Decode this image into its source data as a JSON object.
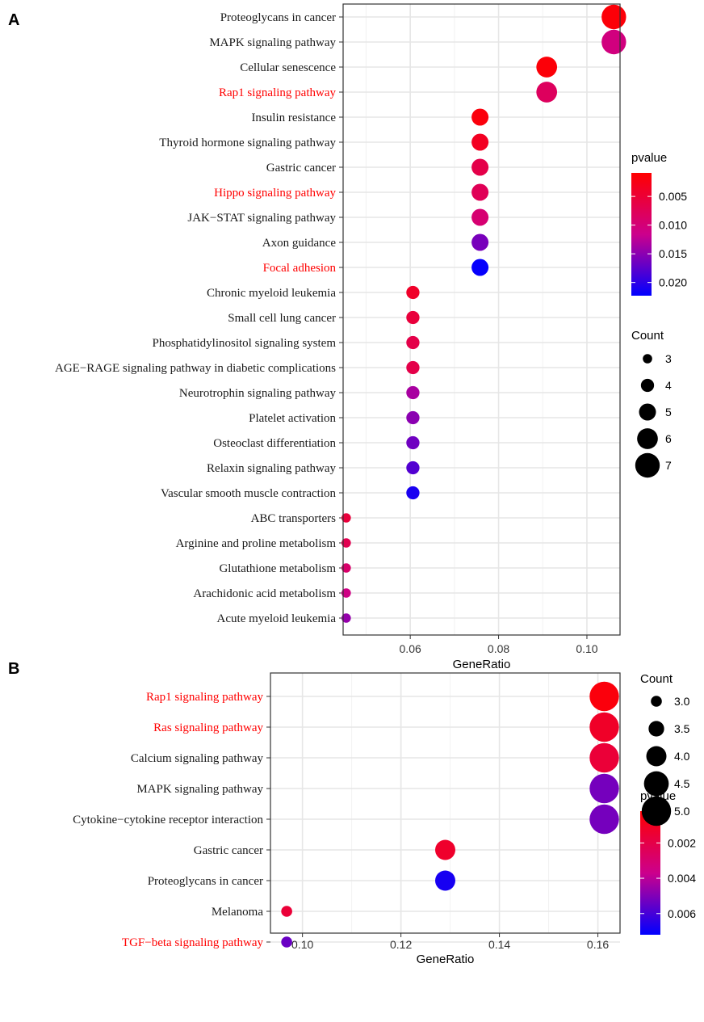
{
  "chart_data": [
    {
      "panel": "A",
      "type": "scatter",
      "xlabel": "GeneRatio",
      "ylabel": "",
      "xlim": [
        0.0448,
        0.1075
      ],
      "xticks": [
        0.06,
        0.08,
        0.1
      ],
      "xtick_labels": [
        "0.06",
        "0.08",
        "0.10"
      ],
      "categories": [
        "Proteoglycans in cancer",
        "MAPK signaling pathway",
        "Cellular senescence",
        "Rap1 signaling pathway",
        "Insulin resistance",
        "Thyroid hormone signaling pathway",
        "Gastric cancer",
        "Hippo signaling pathway",
        "JAK−STAT signaling pathway",
        "Axon guidance",
        "Focal adhesion",
        "Chronic myeloid leukemia",
        "Small cell lung cancer",
        "Phosphatidylinositol signaling system",
        "AGE−RAGE signaling pathway in diabetic complications",
        "Neurotrophin signaling pathway",
        "Platelet activation",
        "Osteoclast differentiation",
        "Relaxin signaling pathway",
        "Vascular smooth muscle contraction",
        "ABC transporters",
        "Arginine and proline metabolism",
        "Glutathione metabolism",
        "Arachidonic acid metabolism",
        "Acute myeloid leukemia"
      ],
      "highlighted": [
        "Rap1 signaling pathway",
        "Hippo signaling pathway",
        "Focal adhesion"
      ],
      "highlight_color": "#ff0000",
      "gene_ratio": [
        0.1061,
        0.1061,
        0.0909,
        0.0909,
        0.0758,
        0.0758,
        0.0758,
        0.0758,
        0.0758,
        0.0758,
        0.0758,
        0.0606,
        0.0606,
        0.0606,
        0.0606,
        0.0606,
        0.0606,
        0.0606,
        0.0606,
        0.0606,
        0.0455,
        0.0455,
        0.0455,
        0.0455,
        0.0455
      ],
      "count": [
        7,
        7,
        6,
        6,
        5,
        5,
        5,
        5,
        5,
        5,
        5,
        4,
        4,
        4,
        4,
        4,
        4,
        4,
        4,
        4,
        3,
        3,
        3,
        3,
        3
      ],
      "pvalue": [
        0.0015,
        0.0105,
        0.0015,
        0.008,
        0.0018,
        0.0035,
        0.0065,
        0.0075,
        0.0095,
        0.016,
        0.022,
        0.004,
        0.0055,
        0.0065,
        0.0065,
        0.0135,
        0.015,
        0.0165,
        0.018,
        0.021,
        0.0055,
        0.007,
        0.009,
        0.011,
        0.0145
      ],
      "color_legend": {
        "title": "pvalue",
        "min": 0.0009,
        "max": 0.0223,
        "ticks": [
          0.005,
          0.01,
          0.015,
          0.02
        ],
        "tick_labels": [
          "0.005",
          "0.010",
          "0.015",
          "0.020"
        ],
        "high_color": "#ff0000",
        "low_color": "#0000ff"
      },
      "size_legend": {
        "title": "Count",
        "values": [
          3,
          4,
          5,
          6,
          7
        ],
        "labels": [
          "3",
          "4",
          "5",
          "6",
          "7"
        ]
      }
    },
    {
      "panel": "B",
      "type": "scatter",
      "xlabel": "GeneRatio",
      "ylabel": "",
      "xlim": [
        0.0935,
        0.1645
      ],
      "xticks": [
        0.1,
        0.12,
        0.14,
        0.16
      ],
      "xtick_labels": [
        "0.10",
        "0.12",
        "0.14",
        "0.16"
      ],
      "categories": [
        "Rap1 signaling pathway",
        "Ras signaling pathway",
        "Calcium signaling pathway",
        "MAPK signaling pathway",
        "Cytokine−cytokine receptor interaction",
        "Gastric cancer",
        "Proteoglycans in cancer",
        "Melanoma",
        "TGF−beta signaling pathway"
      ],
      "highlighted": [
        "Rap1 signaling pathway",
        "Ras signaling pathway",
        "TGF−beta signaling pathway"
      ],
      "highlight_color": "#ff0000",
      "gene_ratio": [
        0.1613,
        0.1613,
        0.1613,
        0.1613,
        0.1613,
        0.129,
        0.129,
        0.0968,
        0.0968
      ],
      "count": [
        5,
        5,
        5,
        5,
        5,
        4,
        4,
        3,
        3
      ],
      "pvalue": [
        0.0005,
        0.0012,
        0.0016,
        0.0052,
        0.0052,
        0.0013,
        0.0068,
        0.0016,
        0.0054
      ],
      "color_legend": {
        "title": "pvalue",
        "min": 0.0002,
        "max": 0.0072,
        "ticks": [
          0.002,
          0.004,
          0.006
        ],
        "tick_labels": [
          "0.002",
          "0.004",
          "0.006"
        ],
        "high_color": "#ff0000",
        "low_color": "#0000ff"
      },
      "size_legend": {
        "title": "Count",
        "values": [
          3.0,
          3.5,
          4.0,
          4.5,
          5.0
        ],
        "labels": [
          "3.0",
          "3.5",
          "4.0",
          "4.5",
          "5.0"
        ]
      }
    }
  ]
}
